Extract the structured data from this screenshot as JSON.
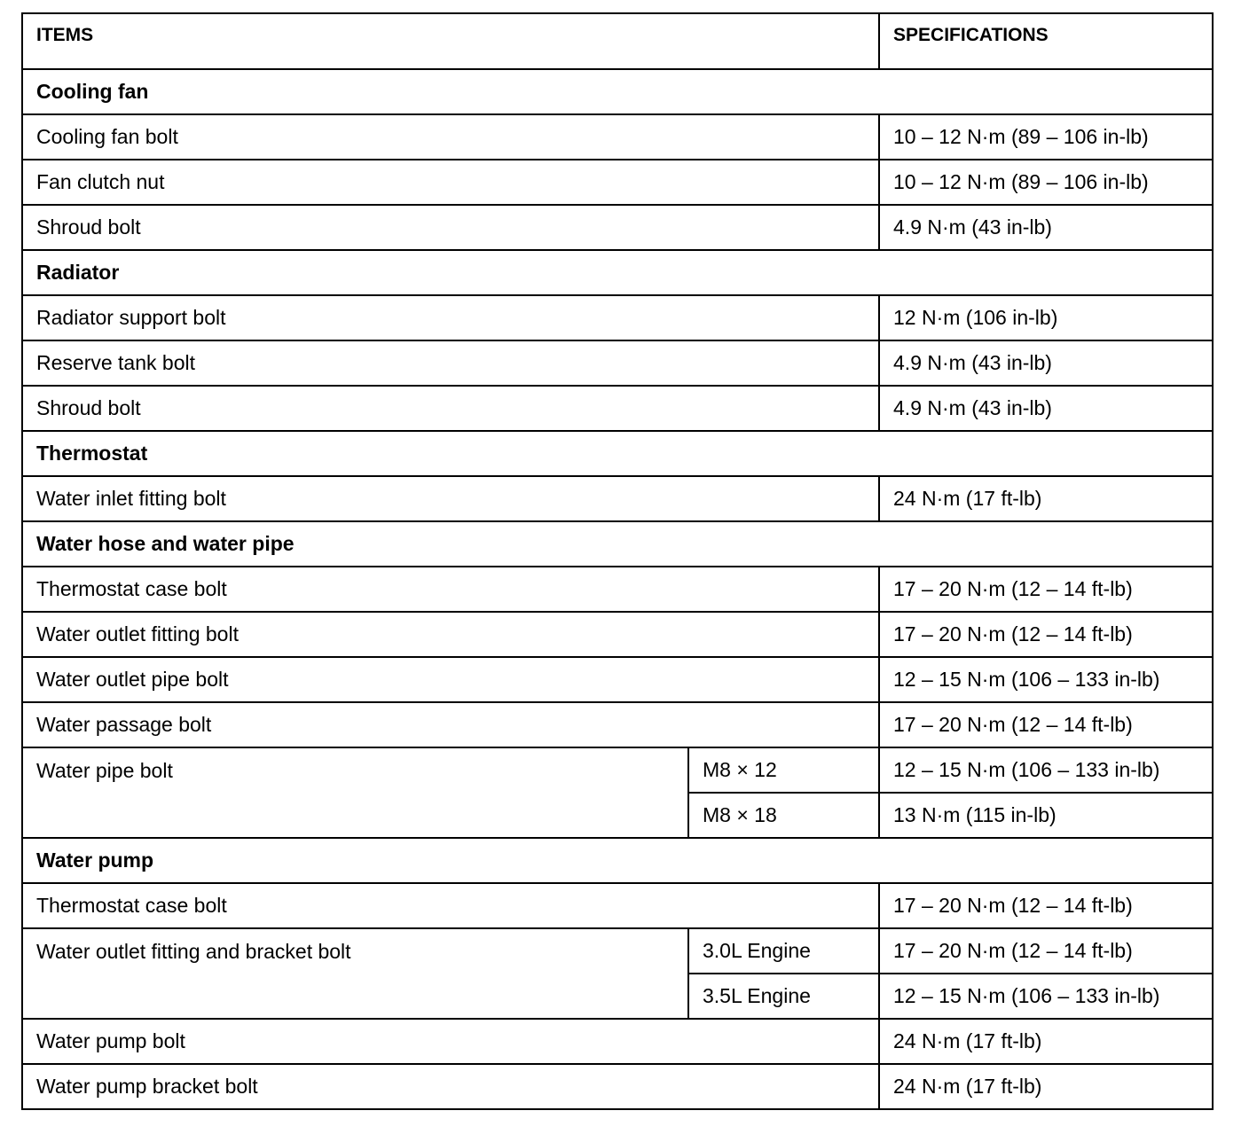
{
  "header": {
    "items": "ITEMS",
    "specifications": "SPECIFICATIONS"
  },
  "sections": [
    {
      "title": "Cooling fan",
      "rows": [
        {
          "item": "Cooling fan bolt",
          "spec": "10 – 12 N·m (89 – 106 in-lb)"
        },
        {
          "item": "Fan clutch nut",
          "spec": "10 – 12 N·m (89 – 106 in-lb)"
        },
        {
          "item": "Shroud bolt",
          "spec": "4.9 N·m (43 in-lb)"
        }
      ]
    },
    {
      "title": "Radiator",
      "rows": [
        {
          "item": "Radiator support bolt",
          "spec": "12 N·m (106 in-lb)"
        },
        {
          "item": "Reserve tank bolt",
          "spec": "4.9 N·m (43 in-lb)"
        },
        {
          "item": "Shroud bolt",
          "spec": "4.9 N·m (43 in-lb)"
        }
      ]
    },
    {
      "title": "Thermostat",
      "rows": [
        {
          "item": "Water inlet fitting bolt",
          "spec": "24 N·m (17 ft-lb)"
        }
      ]
    },
    {
      "title": "Water hose and water pipe",
      "rows": [
        {
          "item": "Thermostat case bolt",
          "spec": "17 – 20 N·m (12 – 14 ft-lb)"
        },
        {
          "item": "Water outlet fitting bolt",
          "spec": "17 – 20 N·m (12 – 14 ft-lb)"
        },
        {
          "item": "Water outlet pipe bolt",
          "spec": "12 – 15 N·m (106 – 133 in-lb)"
        },
        {
          "item": "Water passage bolt",
          "spec": "17 – 20 N·m (12 – 14 ft-lb)"
        },
        {
          "item": "Water pipe bolt",
          "variants": [
            {
              "variant": "M8 × 12",
              "spec": "12 – 15 N·m (106 – 133 in-lb)"
            },
            {
              "variant": "M8 × 18",
              "spec": "13 N·m (115 in-lb)"
            }
          ]
        }
      ]
    },
    {
      "title": "Water pump",
      "rows": [
        {
          "item": "Thermostat case bolt",
          "spec": "17 – 20 N·m (12 – 14 ft-lb)"
        },
        {
          "item": "Water outlet fitting and bracket bolt",
          "variants": [
            {
              "variant": "3.0L Engine",
              "spec": "17 – 20 N·m (12 – 14 ft-lb)"
            },
            {
              "variant": "3.5L Engine",
              "spec": "12 – 15 N·m (106 – 133 in-lb)"
            }
          ]
        },
        {
          "item": "Water pump bolt",
          "spec": "24 N·m (17 ft-lb)"
        },
        {
          "item": "Water pump bracket bolt",
          "spec": "24 N·m (17 ft-lb)"
        }
      ]
    }
  ]
}
